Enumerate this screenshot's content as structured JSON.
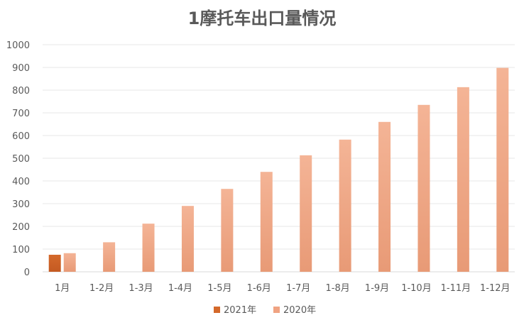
{
  "chart_data": {
    "type": "bar",
    "title": "1摩托车出口量情况",
    "categories": [
      "1月",
      "1-2月",
      "1-3月",
      "1-4月",
      "1-5月",
      "1-6月",
      "1-7月",
      "1-8月",
      "1-9月",
      "1-10月",
      "1-11月",
      "1-12月"
    ],
    "series": [
      {
        "name": "2021年",
        "color": "#D4692B",
        "values": [
          75,
          null,
          null,
          null,
          null,
          null,
          null,
          null,
          null,
          null,
          null,
          null
        ]
      },
      {
        "name": "2020年",
        "color": "#F0A382",
        "values": [
          82,
          130,
          212,
          290,
          365,
          440,
          513,
          582,
          660,
          735,
          813,
          898
        ]
      }
    ],
    "ylim": [
      0,
      1000
    ],
    "yticks": [
      0,
      100,
      200,
      300,
      400,
      500,
      600,
      700,
      800,
      900,
      1000
    ],
    "grid": true,
    "legend_position": "bottom"
  }
}
